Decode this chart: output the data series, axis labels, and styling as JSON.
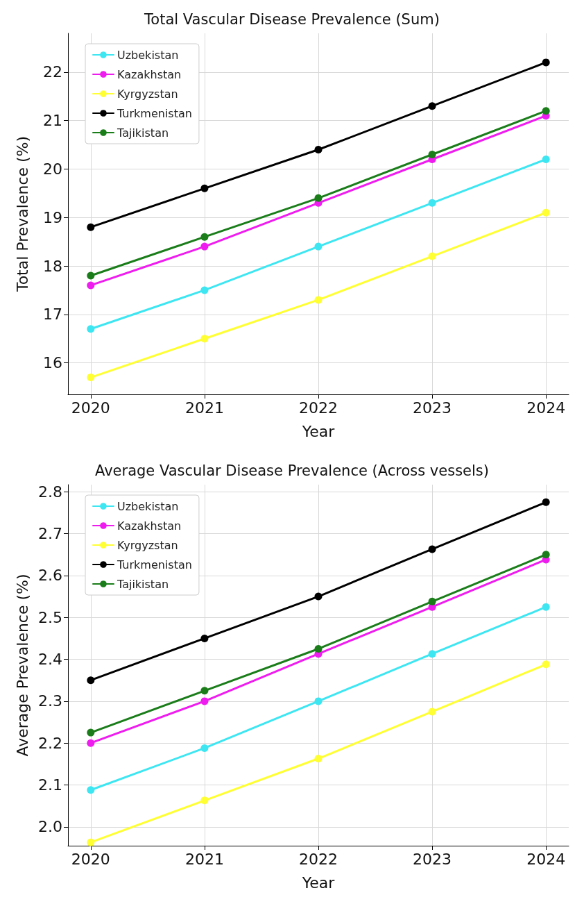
{
  "chart_data": [
    {
      "type": "line",
      "title": "Total Vascular Disease Prevalence (Sum)",
      "xlabel": "Year",
      "ylabel": "Total Prevalence (%)",
      "x": [
        2020,
        2021,
        2022,
        2023,
        2024
      ],
      "xlim": [
        2019.8,
        2024.2
      ],
      "xticks": [
        2020,
        2021,
        2022,
        2023,
        2024
      ],
      "ylim": [
        15.35,
        22.8
      ],
      "yticks": [
        16,
        17,
        18,
        19,
        20,
        21,
        22
      ],
      "grid": true,
      "legend": "top left",
      "marker": "circle",
      "line_style": "solid",
      "series": [
        {
          "name": "Uzbekistan",
          "color": "#3ee6f2",
          "values": [
            16.7,
            17.5,
            18.4,
            19.3,
            20.2
          ]
        },
        {
          "name": "Kazakhstan",
          "color": "#ee1cee",
          "values": [
            17.6,
            18.4,
            19.3,
            20.2,
            21.1
          ]
        },
        {
          "name": "Kyrgyzstan",
          "color": "#ffff33",
          "values": [
            15.7,
            16.5,
            17.3,
            18.2,
            19.1
          ]
        },
        {
          "name": "Turkmenistan",
          "color": "#000000",
          "values": [
            18.8,
            19.6,
            20.4,
            21.3,
            22.2
          ]
        },
        {
          "name": "Tajikistan",
          "color": "#1a7d1a",
          "values": [
            17.8,
            18.6,
            19.4,
            20.3,
            21.2
          ]
        }
      ]
    },
    {
      "type": "line",
      "title": "Average Vascular Disease Prevalence (Across vessels)",
      "xlabel": "Year",
      "ylabel": "Average Prevalence (%)",
      "x": [
        2020,
        2021,
        2022,
        2023,
        2024
      ],
      "xlim": [
        2019.8,
        2024.2
      ],
      "xticks": [
        2020,
        2021,
        2022,
        2023,
        2024
      ],
      "ylim": [
        1.955,
        2.817
      ],
      "yticks": [
        {
          "value": 2,
          "label": "2.0"
        },
        2.1,
        2.2,
        2.3,
        2.4,
        2.5,
        2.6,
        2.7,
        2.8
      ],
      "grid": true,
      "legend": "top left",
      "marker": "circle",
      "line_style": "solid",
      "series": [
        {
          "name": "Uzbekistan",
          "color": "#3ee6f2",
          "values": [
            2.088,
            2.188,
            2.3,
            2.413,
            2.525
          ]
        },
        {
          "name": "Kazakhstan",
          "color": "#ee1cee",
          "values": [
            2.2,
            2.3,
            2.413,
            2.525,
            2.638
          ]
        },
        {
          "name": "Kyrgyzstan",
          "color": "#ffff33",
          "values": [
            1.963,
            2.063,
            2.163,
            2.275,
            2.388
          ]
        },
        {
          "name": "Turkmenistan",
          "color": "#000000",
          "values": [
            2.35,
            2.45,
            2.55,
            2.663,
            2.775
          ]
        },
        {
          "name": "Tajikistan",
          "color": "#1a7d1a",
          "values": [
            2.225,
            2.325,
            2.425,
            2.538,
            2.65
          ]
        }
      ]
    }
  ]
}
